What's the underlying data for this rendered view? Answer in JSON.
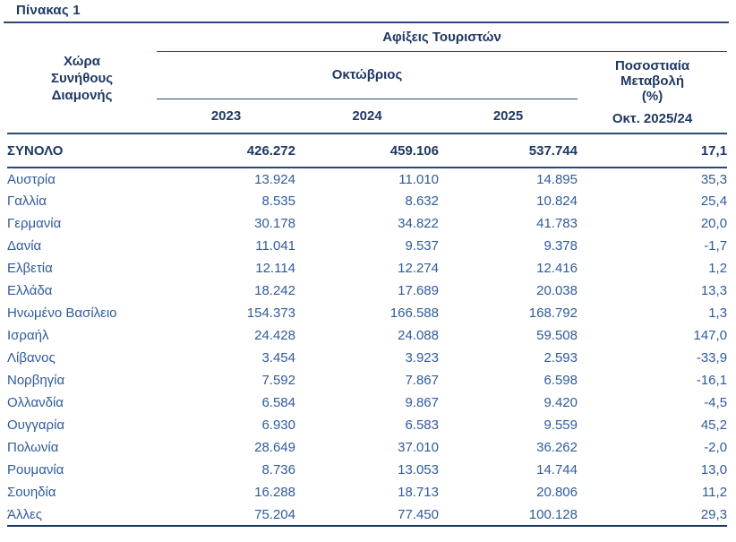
{
  "title": "Πίνακας 1",
  "colors": {
    "header_text": "#1f3864",
    "body_text": "#2f5b9d",
    "rule_line": "#2b4a74"
  },
  "table": {
    "country_header": {
      "line1": "Χώρα",
      "line2": "Συνήθους",
      "line3": "Διαμονής"
    },
    "arrivals_header": "Αφίξεις Τουριστών",
    "month_header": "Οκτώβριος",
    "year_headers": [
      "2023",
      "2024",
      "2025"
    ],
    "pct_header": {
      "line1": "Ποσοστιαία",
      "line2": "Μεταβολή",
      "line3": "(%)",
      "sub": "Οκτ. 2025/24"
    },
    "total_row": {
      "label": "ΣΥΝΟΛΟ",
      "y2023": "426.272",
      "y2024": "459.106",
      "y2025": "537.744",
      "pct": "17,1"
    },
    "rows": [
      {
        "country": "Αυστρία",
        "y2023": "13.924",
        "y2024": "11.010",
        "y2025": "14.895",
        "pct": "35,3"
      },
      {
        "country": "Γαλλία",
        "y2023": "8.535",
        "y2024": "8.632",
        "y2025": "10.824",
        "pct": "25,4"
      },
      {
        "country": "Γερμανία",
        "y2023": "30.178",
        "y2024": "34.822",
        "y2025": "41.783",
        "pct": "20,0"
      },
      {
        "country": "Δανία",
        "y2023": "11.041",
        "y2024": "9.537",
        "y2025": "9.378",
        "pct": "-1,7"
      },
      {
        "country": "Ελβετία",
        "y2023": "12.114",
        "y2024": "12.274",
        "y2025": "12.416",
        "pct": "1,2"
      },
      {
        "country": "Ελλάδα",
        "y2023": "18.242",
        "y2024": "17.689",
        "y2025": "20.038",
        "pct": "13,3"
      },
      {
        "country": "Ηνωμένο Βασίλειο",
        "y2023": "154.373",
        "y2024": "166.588",
        "y2025": "168.792",
        "pct": "1,3"
      },
      {
        "country": "Ισραήλ",
        "y2023": "24.428",
        "y2024": "24.088",
        "y2025": "59.508",
        "pct": "147,0"
      },
      {
        "country": "Λίβανος",
        "y2023": "3.454",
        "y2024": "3.923",
        "y2025": "2.593",
        "pct": "-33,9"
      },
      {
        "country": "Νορβηγία",
        "y2023": "7.592",
        "y2024": "7.867",
        "y2025": "6.598",
        "pct": "-16,1"
      },
      {
        "country": "Ολλανδία",
        "y2023": "6.584",
        "y2024": "9.867",
        "y2025": "9.420",
        "pct": "-4,5"
      },
      {
        "country": "Ουγγαρία",
        "y2023": "6.930",
        "y2024": "6.583",
        "y2025": "9.559",
        "pct": "45,2"
      },
      {
        "country": "Πολωνία",
        "y2023": "28.649",
        "y2024": "37.010",
        "y2025": "36.262",
        "pct": "-2,0"
      },
      {
        "country": "Ρουμανία",
        "y2023": "8.736",
        "y2024": "13.053",
        "y2025": "14.744",
        "pct": "13,0"
      },
      {
        "country": "Σουηδία",
        "y2023": "16.288",
        "y2024": "18.713",
        "y2025": "20.806",
        "pct": "11,2"
      },
      {
        "country": "Άλλες",
        "y2023": "75.204",
        "y2024": "77.450",
        "y2025": "100.128",
        "pct": "29,3"
      }
    ]
  }
}
